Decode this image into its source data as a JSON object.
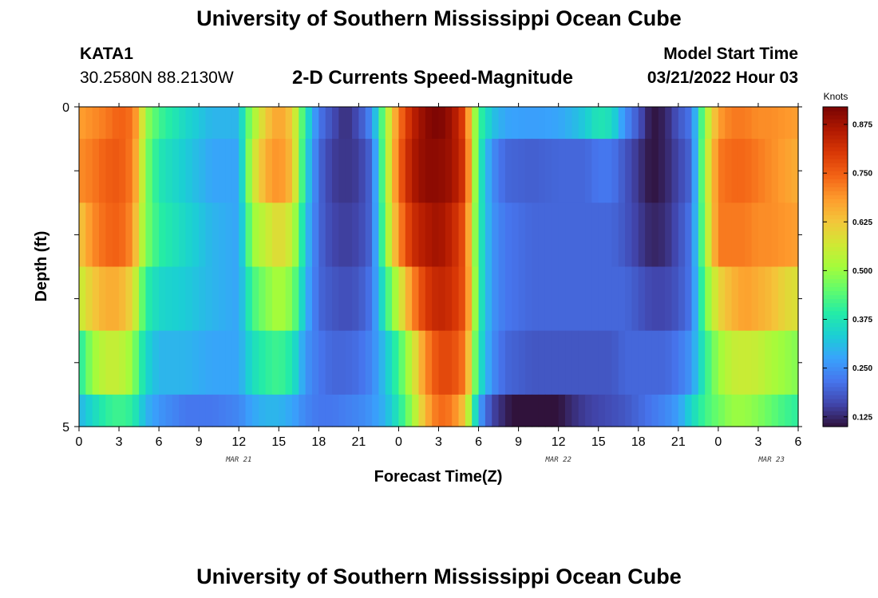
{
  "header": {
    "title": "University of Southern Mississippi Ocean Cube",
    "station": "KATA1",
    "coordinates": "30.2580N  88.2130W",
    "subtitle": "2-D Currents Speed-Magnitude",
    "model_start_label": "Model Start Time",
    "model_start_value": "03/21/2022 Hour 03"
  },
  "footer": {
    "title": "University of Southern Mississippi Ocean Cube"
  },
  "chart_data": {
    "type": "heatmap",
    "title": "2-D Currents Speed-Magnitude",
    "xlabel": "Forecast Time(Z)",
    "ylabel": "Depth (ft)",
    "x_ticks": [
      "0",
      "3",
      "6",
      "9",
      "12",
      "15",
      "18",
      "21",
      "0",
      "3",
      "6",
      "9",
      "12",
      "15",
      "18",
      "21",
      "0",
      "3",
      "6"
    ],
    "date_labels": [
      {
        "label": "MAR 21",
        "hour": 12
      },
      {
        "label": "MAR 22",
        "hour": 36
      },
      {
        "label": "MAR 23",
        "hour": 52
      }
    ],
    "x_range_hours": [
      0,
      54
    ],
    "y_ticks": [
      "0",
      "5"
    ],
    "ylim": [
      0,
      5
    ],
    "colorbar": {
      "label": "Knots",
      "ticks": [
        "0.125",
        "0.250",
        "0.375",
        "0.500",
        "0.625",
        "0.750",
        "0.875"
      ],
      "range": [
        0.1,
        0.92
      ],
      "colors": [
        "#30123b",
        "#4145ab",
        "#4675ed",
        "#39a2fc",
        "#1bcfd4",
        "#24eca6",
        "#61fc6c",
        "#a4fc3b",
        "#d1e834",
        "#f3c63a",
        "#fe9b2d",
        "#f36315",
        "#d93806",
        "#b11901",
        "#7a0403"
      ]
    },
    "hours_per_column": 0.5,
    "rows": [
      {
        "depth_band": "0.0-0.5",
        "key_hours": [
          0,
          1,
          2,
          3,
          4,
          4.5,
          5,
          6,
          8,
          10,
          12,
          12.5,
          13,
          14,
          15,
          16,
          16.5,
          17,
          18,
          19,
          20,
          21,
          22,
          23,
          24,
          25,
          26,
          27,
          28,
          29,
          29.5,
          30,
          31,
          32,
          34,
          36,
          37,
          38,
          39,
          40,
          41,
          42,
          43,
          44,
          45,
          46,
          47,
          48,
          49,
          50,
          51,
          52,
          53,
          54
        ],
        "key_values": [
          0.68,
          0.7,
          0.72,
          0.75,
          0.73,
          0.65,
          0.5,
          0.42,
          0.35,
          0.3,
          0.3,
          0.42,
          0.5,
          0.62,
          0.68,
          0.62,
          0.5,
          0.38,
          0.22,
          0.17,
          0.13,
          0.17,
          0.25,
          0.5,
          0.72,
          0.84,
          0.9,
          0.92,
          0.88,
          0.78,
          0.58,
          0.42,
          0.32,
          0.28,
          0.27,
          0.28,
          0.3,
          0.33,
          0.38,
          0.36,
          0.25,
          0.18,
          0.1,
          0.12,
          0.18,
          0.22,
          0.5,
          0.68,
          0.72,
          0.72,
          0.7,
          0.7,
          0.69,
          0.68
        ]
      },
      {
        "depth_band": "0.5-1.5",
        "key_hours": [
          0,
          1,
          2,
          3,
          4,
          4.5,
          5,
          6,
          8,
          10,
          12,
          12.5,
          13,
          14,
          15,
          16,
          16.5,
          17,
          18,
          19,
          20,
          21,
          22,
          23,
          24,
          25,
          26,
          27,
          28,
          29,
          29.5,
          30,
          31,
          32,
          34,
          36,
          37,
          38,
          39,
          40,
          41,
          42,
          43,
          44,
          45,
          46,
          47,
          48,
          49,
          50,
          51,
          52,
          53,
          54
        ],
        "key_values": [
          0.7,
          0.72,
          0.75,
          0.76,
          0.72,
          0.62,
          0.48,
          0.38,
          0.33,
          0.28,
          0.28,
          0.42,
          0.55,
          0.66,
          0.7,
          0.64,
          0.5,
          0.35,
          0.2,
          0.15,
          0.14,
          0.15,
          0.2,
          0.5,
          0.74,
          0.86,
          0.9,
          0.9,
          0.88,
          0.8,
          0.6,
          0.4,
          0.25,
          0.2,
          0.19,
          0.2,
          0.2,
          0.2,
          0.22,
          0.22,
          0.18,
          0.14,
          0.1,
          0.12,
          0.16,
          0.2,
          0.52,
          0.72,
          0.74,
          0.74,
          0.72,
          0.7,
          0.68,
          0.66
        ]
      },
      {
        "depth_band": "1.5-2.5",
        "key_hours": [
          0,
          1,
          2,
          3,
          4,
          4.5,
          5,
          6,
          8,
          10,
          12,
          12.5,
          13,
          14,
          15,
          16,
          16.5,
          17,
          18,
          19,
          20,
          21,
          22,
          23,
          24,
          25,
          26,
          27,
          28,
          29,
          29.5,
          30,
          31,
          32,
          34,
          36,
          37,
          38,
          39,
          40,
          41,
          42,
          43,
          44,
          45,
          46,
          47,
          48,
          49,
          50,
          51,
          52,
          53,
          54
        ],
        "key_values": [
          0.62,
          0.7,
          0.74,
          0.75,
          0.7,
          0.58,
          0.48,
          0.4,
          0.35,
          0.3,
          0.28,
          0.38,
          0.5,
          0.55,
          0.6,
          0.55,
          0.45,
          0.32,
          0.2,
          0.16,
          0.15,
          0.16,
          0.2,
          0.48,
          0.7,
          0.82,
          0.86,
          0.88,
          0.84,
          0.76,
          0.58,
          0.4,
          0.26,
          0.22,
          0.2,
          0.2,
          0.2,
          0.2,
          0.2,
          0.2,
          0.18,
          0.15,
          0.12,
          0.13,
          0.17,
          0.22,
          0.5,
          0.72,
          0.72,
          0.72,
          0.7,
          0.7,
          0.69,
          0.68
        ]
      },
      {
        "depth_band": "2.5-3.5",
        "key_hours": [
          0,
          1,
          2,
          3,
          4,
          4.5,
          5,
          6,
          8,
          10,
          12,
          12.5,
          13,
          14,
          15,
          16,
          16.5,
          17,
          18,
          19,
          20,
          21,
          22,
          23,
          24,
          25,
          26,
          27,
          28,
          29,
          29.5,
          30,
          31,
          32,
          34,
          36,
          37,
          38,
          39,
          40,
          41,
          42,
          43,
          44,
          45,
          46,
          47,
          48,
          49,
          50,
          51,
          52,
          53,
          54
        ],
        "key_values": [
          0.55,
          0.62,
          0.66,
          0.66,
          0.6,
          0.5,
          0.4,
          0.35,
          0.33,
          0.3,
          0.28,
          0.35,
          0.42,
          0.48,
          0.52,
          0.48,
          0.4,
          0.3,
          0.2,
          0.18,
          0.17,
          0.18,
          0.22,
          0.4,
          0.55,
          0.7,
          0.8,
          0.84,
          0.82,
          0.76,
          0.6,
          0.4,
          0.26,
          0.22,
          0.2,
          0.2,
          0.2,
          0.2,
          0.2,
          0.2,
          0.2,
          0.18,
          0.16,
          0.16,
          0.18,
          0.22,
          0.46,
          0.6,
          0.65,
          0.68,
          0.66,
          0.64,
          0.6,
          0.58
        ]
      },
      {
        "depth_band": "3.5-4.5",
        "key_hours": [
          0,
          1,
          2,
          3,
          4,
          4.5,
          5,
          6,
          8,
          10,
          12,
          12.5,
          13,
          14,
          15,
          16,
          16.5,
          17,
          18,
          19,
          20,
          21,
          22,
          23,
          24,
          25,
          26,
          27,
          28,
          29,
          29.5,
          30,
          31,
          32,
          34,
          36,
          37,
          38,
          39,
          40,
          41,
          42,
          43,
          44,
          45,
          46,
          47,
          48,
          49,
          50,
          51,
          52,
          53,
          54
        ],
        "key_values": [
          0.38,
          0.5,
          0.55,
          0.55,
          0.5,
          0.42,
          0.35,
          0.3,
          0.3,
          0.28,
          0.28,
          0.32,
          0.36,
          0.4,
          0.42,
          0.38,
          0.32,
          0.26,
          0.22,
          0.2,
          0.2,
          0.21,
          0.24,
          0.32,
          0.42,
          0.55,
          0.7,
          0.78,
          0.78,
          0.72,
          0.55,
          0.38,
          0.25,
          0.2,
          0.18,
          0.18,
          0.18,
          0.18,
          0.18,
          0.18,
          0.2,
          0.2,
          0.2,
          0.2,
          0.22,
          0.26,
          0.4,
          0.5,
          0.55,
          0.56,
          0.55,
          0.52,
          0.5,
          0.48
        ]
      },
      {
        "depth_band": "4.5-5.0",
        "key_hours": [
          0,
          1,
          2,
          3,
          4,
          4.5,
          5,
          6,
          8,
          10,
          12,
          12.5,
          13,
          14,
          15,
          16,
          16.5,
          17,
          18,
          19,
          20,
          21,
          22,
          23,
          24,
          25,
          26,
          27,
          28,
          29,
          29.5,
          30,
          31,
          32,
          33,
          34,
          36,
          37,
          38,
          39,
          40,
          41,
          42,
          43,
          44,
          45,
          46,
          47,
          48,
          49,
          50,
          51,
          52,
          53,
          54
        ],
        "key_values": [
          0.3,
          0.35,
          0.4,
          0.42,
          0.4,
          0.35,
          0.3,
          0.26,
          0.22,
          0.22,
          0.24,
          0.26,
          0.28,
          0.3,
          0.3,
          0.28,
          0.26,
          0.24,
          0.22,
          0.22,
          0.23,
          0.24,
          0.26,
          0.3,
          0.38,
          0.5,
          0.65,
          0.74,
          0.72,
          0.62,
          0.45,
          0.28,
          0.16,
          0.12,
          0.08,
          0.08,
          0.1,
          0.13,
          0.15,
          0.16,
          0.17,
          0.18,
          0.2,
          0.22,
          0.24,
          0.27,
          0.35,
          0.42,
          0.46,
          0.5,
          0.5,
          0.48,
          0.45,
          0.42,
          0.4
        ]
      }
    ]
  }
}
